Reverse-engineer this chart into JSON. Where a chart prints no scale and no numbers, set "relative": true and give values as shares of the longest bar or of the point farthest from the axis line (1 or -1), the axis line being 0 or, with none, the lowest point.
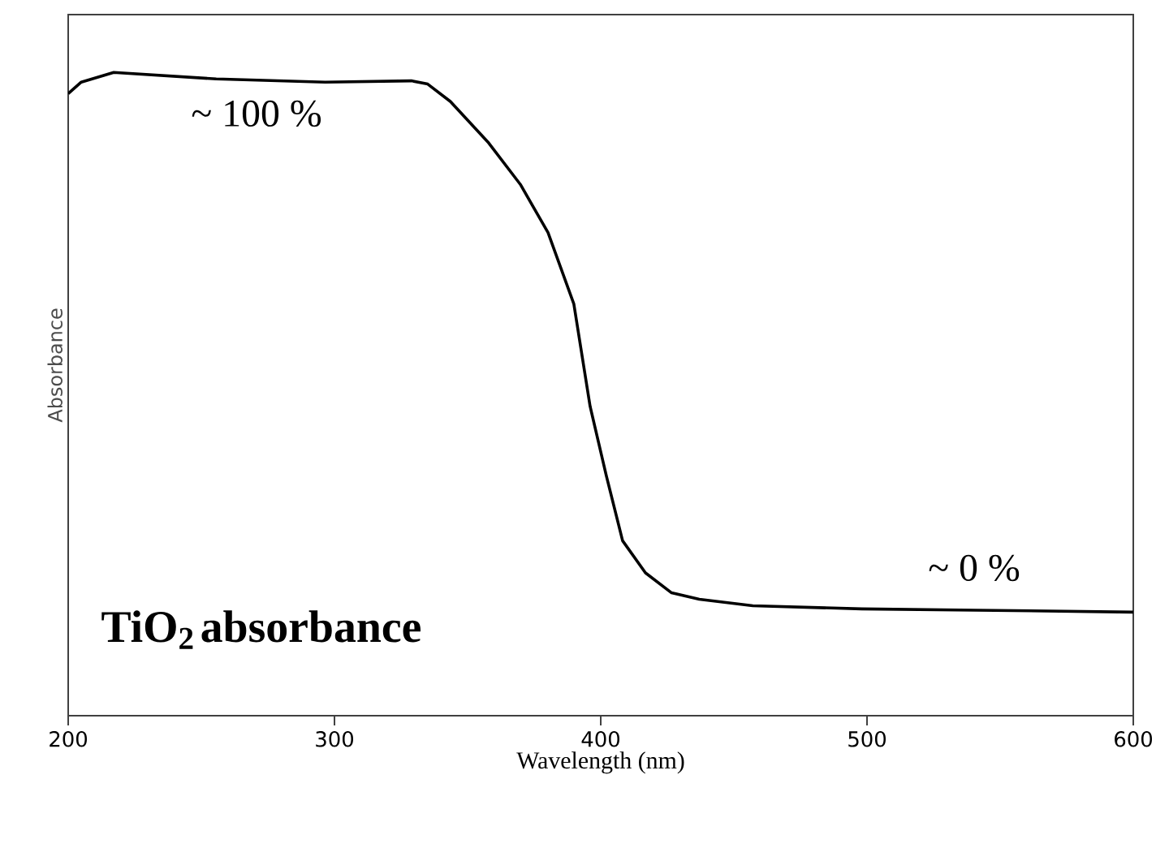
{
  "chart_data": {
    "type": "line",
    "relative": true,
    "xlabel": "Wavelength (nm)",
    "ylabel": "Absorbance",
    "xlim": [
      200,
      600
    ],
    "xticks": [
      200,
      300,
      400,
      500,
      600
    ],
    "grid": false,
    "legend": false,
    "marker": "none",
    "line_style": "solid",
    "annotations": [
      "~ 100 %",
      "~ 0 %",
      "**TiO$_{2}$ absorbance**"
    ],
    "series": [
      {
        "color": "#000000",
        "x": [
          200,
          204.9,
          217.1,
          255.6,
          296.5,
          328.9,
          335.0,
          343.5,
          357.6,
          369.8,
          380.2,
          389.9,
          396.0,
          402.1,
          408.2,
          416.8,
          426.6,
          437.0,
          457.1,
          498.0,
          540.8,
          600
        ],
        "values": [
          0.967,
          0.985,
          1.0,
          0.99,
          0.985,
          0.987,
          0.982,
          0.955,
          0.892,
          0.826,
          0.751,
          0.64,
          0.481,
          0.373,
          0.272,
          0.222,
          0.191,
          0.181,
          0.171,
          0.166,
          0.164,
          0.161
        ]
      }
    ]
  }
}
